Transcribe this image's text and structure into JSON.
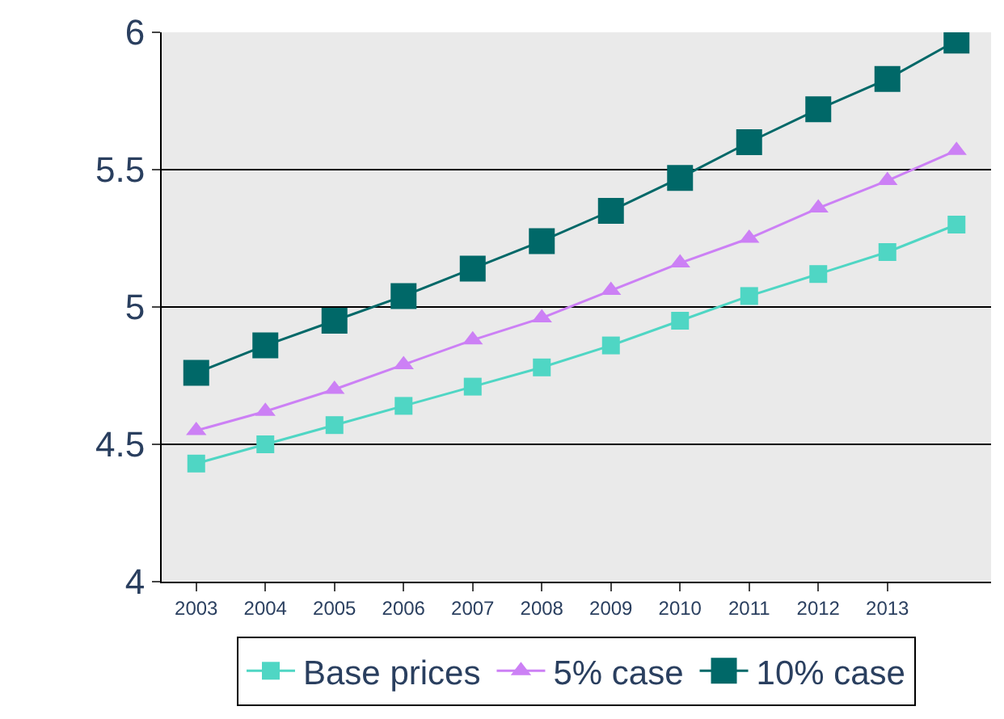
{
  "chart_data": {
    "type": "line",
    "categories": [
      "2003",
      "2004",
      "2005",
      "2006",
      "2007",
      "2008",
      "2009",
      "2010",
      "2011",
      "2012",
      "2013",
      null
    ],
    "ylim": [
      4,
      6
    ],
    "yticks": [
      4,
      4.5,
      5,
      5.5,
      6
    ],
    "grid": "y",
    "legend": "bottom",
    "series": [
      {
        "name": "Base prices",
        "color": "#4fd6c4",
        "marker": "square",
        "values": [
          4.43,
          4.5,
          4.57,
          4.64,
          4.71,
          4.78,
          4.86,
          4.95,
          5.04,
          5.12,
          5.2,
          5.3
        ]
      },
      {
        "name": "5% case",
        "color": "#cc80f5",
        "marker": "triangle",
        "values": [
          4.55,
          4.62,
          4.7,
          4.79,
          4.88,
          4.96,
          5.06,
          5.16,
          5.25,
          5.36,
          5.46,
          5.57
        ]
      },
      {
        "name": "10% case",
        "color": "#006868",
        "marker": "square",
        "values": [
          4.76,
          4.86,
          4.95,
          5.04,
          5.14,
          5.24,
          5.35,
          5.47,
          5.6,
          5.72,
          5.83,
          5.97
        ]
      }
    ]
  }
}
